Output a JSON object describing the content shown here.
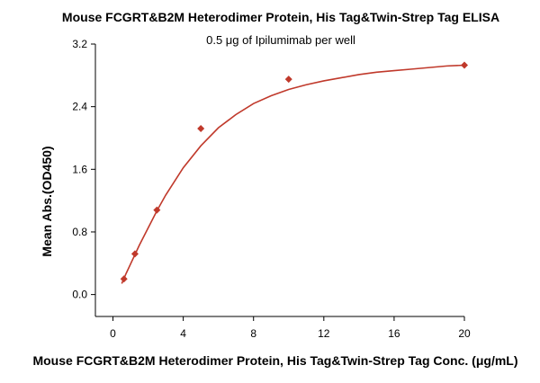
{
  "chart_data": {
    "type": "scatter",
    "title": "Mouse FCGRT&B2M Heterodimer Protein, His Tag&Twin-Strep Tag ELISA",
    "subtitle": "0.5 μg of Ipilumimab per well",
    "xlabel": "Mouse FCGRT&B2M Heterodimer Protein, His Tag&Twin-Strep Tag Conc. (μg/mL)",
    "ylabel": "Mean Abs.(OD450)",
    "xlim": [
      -1,
      20
    ],
    "ylim": [
      -0.28,
      3.2
    ],
    "x_ticks": [
      0,
      4,
      8,
      12,
      16,
      20
    ],
    "y_ticks": [
      0.0,
      0.8,
      1.6,
      2.4,
      3.2
    ],
    "x_tick_labels": [
      "0",
      "4",
      "8",
      "12",
      "16",
      "20"
    ],
    "y_tick_labels": [
      "0.0",
      "0.8",
      "1.6",
      "2.4",
      "3.2"
    ],
    "grid": false,
    "legend": "none",
    "series": [
      {
        "points": [
          {
            "x": 0.625,
            "y": 0.2
          },
          {
            "x": 1.25,
            "y": 0.52
          },
          {
            "x": 2.5,
            "y": 1.08
          },
          {
            "x": 5,
            "y": 2.12
          },
          {
            "x": 10,
            "y": 2.75
          },
          {
            "x": 20,
            "y": 2.93
          }
        ],
        "fit_curve": {
          "x": [
            0.5,
            0.75,
            1,
            1.5,
            2,
            2.5,
            3,
            4,
            5,
            6,
            7,
            8,
            9,
            10,
            11,
            12,
            13,
            14,
            15,
            16,
            17,
            18,
            19,
            20
          ],
          "y": [
            0.14,
            0.27,
            0.39,
            0.63,
            0.85,
            1.07,
            1.27,
            1.62,
            1.9,
            2.13,
            2.3,
            2.44,
            2.54,
            2.62,
            2.68,
            2.73,
            2.77,
            2.81,
            2.84,
            2.86,
            2.88,
            2.9,
            2.92,
            2.93
          ]
        }
      }
    ],
    "colors": {
      "series": "#c0392b",
      "axis": "#000000"
    }
  }
}
